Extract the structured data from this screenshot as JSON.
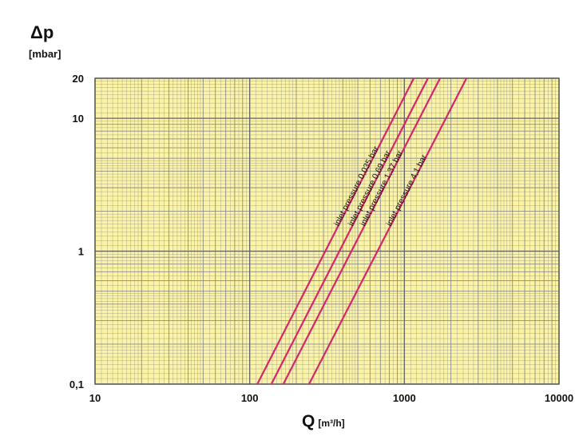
{
  "chart_data": {
    "type": "line",
    "ylabel": "Δp",
    "ylabel_unit": "[mbar]",
    "xlabel": "Q",
    "xlabel_unit": "[m³/h]",
    "xscale": "log",
    "yscale": "log",
    "xlim": [
      10,
      10000
    ],
    "ylim": [
      0.1,
      20
    ],
    "xticks": [
      10,
      100,
      1000,
      10000
    ],
    "xtick_labels": [
      "10",
      "100",
      "1000",
      "10000"
    ],
    "yticks": [
      0.1,
      1,
      10,
      20
    ],
    "ytick_labels": [
      "0,1",
      "1",
      "10",
      "20"
    ],
    "grid": true,
    "background_color": "#fbf3a6",
    "grid_color": "#8c8c8c",
    "line_color": "#d6256b",
    "series": [
      {
        "name": "inlet pressure 0,035 bar",
        "x": [
          112,
          1150
        ],
        "y": [
          0.1,
          20
        ]
      },
      {
        "name": "inlet pressure 0,69 bar",
        "x": [
          138,
          1420
        ],
        "y": [
          0.1,
          20
        ]
      },
      {
        "name": "inlet pressure 1,37 bar",
        "x": [
          165,
          1700
        ],
        "y": [
          0.1,
          20
        ]
      },
      {
        "name": "inlet pressure 4,1 bar",
        "x": [
          242,
          2520
        ],
        "y": [
          0.1,
          20
        ]
      }
    ]
  }
}
